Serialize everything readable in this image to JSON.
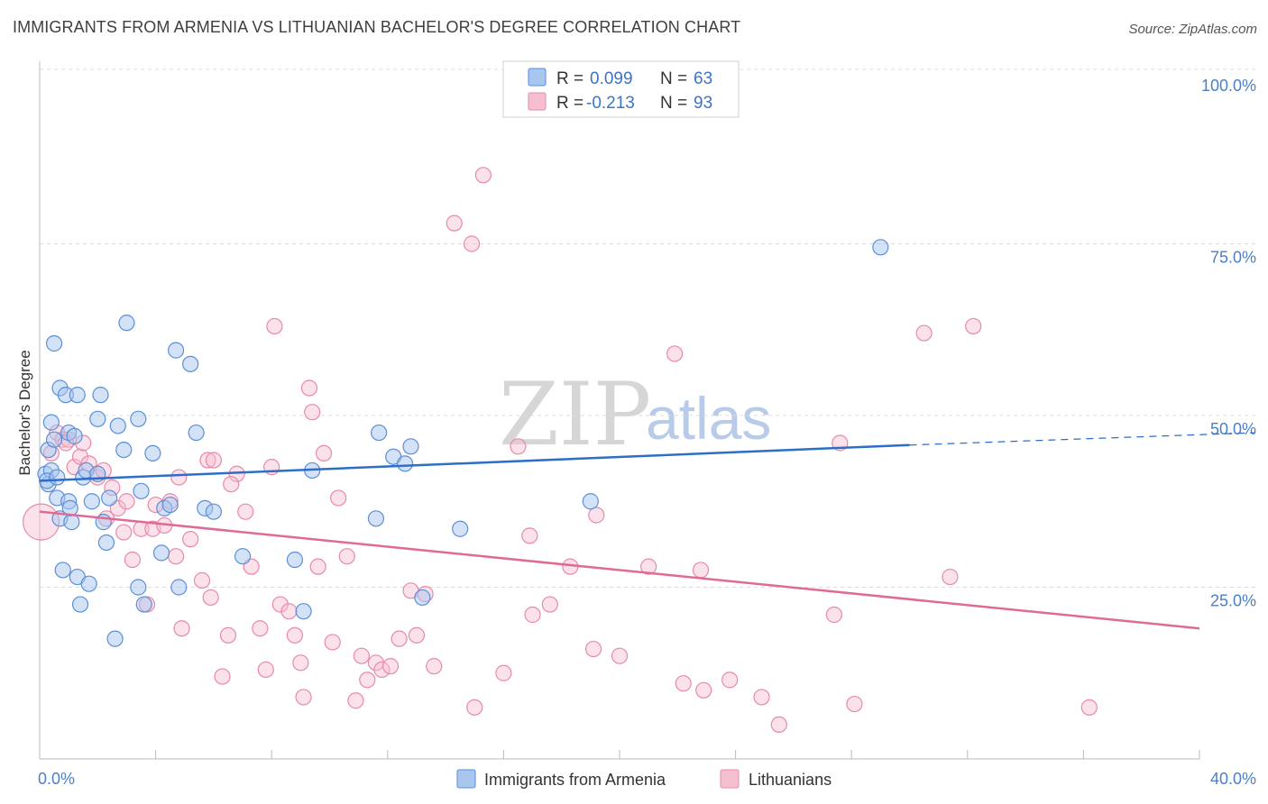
{
  "title": "IMMIGRANTS FROM ARMENIA VS LITHUANIAN BACHELOR'S DEGREE CORRELATION CHART",
  "source": "Source: ZipAtlas.com",
  "watermark": {
    "zip": "ZIP",
    "atlas": "atlas"
  },
  "colors": {
    "blue_fill": "#a9c6ef",
    "blue_stroke": "#5b8fd6",
    "blue_line": "#2d6ec9",
    "pink_fill": "#f6bfd0",
    "pink_stroke": "#e68aa8",
    "pink_line": "#e06a94",
    "grid": "#dddddd",
    "tick_text": "#4a7fc9"
  },
  "legend": {
    "rows": [
      {
        "r_label": "R =",
        "r_value": "0.099",
        "n_label": "N =",
        "n_value": "63"
      },
      {
        "r_label": "R =",
        "r_value": "-0.213",
        "n_label": "N =",
        "n_value": "93"
      }
    ]
  },
  "chart_data": {
    "type": "scatter",
    "title": "IMMIGRANTS FROM ARMENIA VS LITHUANIAN BACHELOR'S DEGREE CORRELATION CHART",
    "xlabel": "",
    "ylabel": "Bachelor's Degree",
    "xlim": [
      0,
      40
    ],
    "ylim": [
      0,
      100
    ],
    "x_tick_labels": [
      "0.0%",
      "40.0%"
    ],
    "y_tick_labels": [
      "100.0%",
      "75.0%",
      "50.0%",
      "25.0%"
    ],
    "y_ticks": [
      100,
      75,
      50,
      25
    ],
    "grid": true,
    "legend_position": "top-center",
    "series": [
      {
        "name": "Immigrants from Armenia",
        "color": "#a9c6ef",
        "trend": {
          "x0": 0,
          "y0": 40.5,
          "x1": 30,
          "y1": 45.7,
          "dashed_to_x": 40,
          "dashed_to_y": 47.5
        },
        "points": [
          [
            0.2,
            41.5
          ],
          [
            0.3,
            40.0
          ],
          [
            0.3,
            45.0
          ],
          [
            0.4,
            49.0
          ],
          [
            0.4,
            42.0
          ],
          [
            0.5,
            46.5
          ],
          [
            0.5,
            60.5
          ],
          [
            0.6,
            38.0
          ],
          [
            0.7,
            54.0
          ],
          [
            0.7,
            35.0
          ],
          [
            0.8,
            27.5
          ],
          [
            0.9,
            53.0
          ],
          [
            1.0,
            37.5
          ],
          [
            1.0,
            47.5
          ],
          [
            1.1,
            34.5
          ],
          [
            1.2,
            47.0
          ],
          [
            1.3,
            53.0
          ],
          [
            1.3,
            26.5
          ],
          [
            1.4,
            22.5
          ],
          [
            1.5,
            41.0
          ],
          [
            1.7,
            25.5
          ],
          [
            1.8,
            37.5
          ],
          [
            2.0,
            49.5
          ],
          [
            2.1,
            53.0
          ],
          [
            2.2,
            34.5
          ],
          [
            2.3,
            31.5
          ],
          [
            2.4,
            38.0
          ],
          [
            2.6,
            17.5
          ],
          [
            2.7,
            48.5
          ],
          [
            2.9,
            45.0
          ],
          [
            3.0,
            63.5
          ],
          [
            3.4,
            49.5
          ],
          [
            3.4,
            25.0
          ],
          [
            3.6,
            22.5
          ],
          [
            3.9,
            44.5
          ],
          [
            4.2,
            30.0
          ],
          [
            4.3,
            36.5
          ],
          [
            4.7,
            59.5
          ],
          [
            4.8,
            25.0
          ],
          [
            5.2,
            57.5
          ],
          [
            5.4,
            47.5
          ],
          [
            5.7,
            36.5
          ],
          [
            7.0,
            29.5
          ],
          [
            8.8,
            29.0
          ],
          [
            9.1,
            21.5
          ],
          [
            9.4,
            42.0
          ],
          [
            11.6,
            35.0
          ],
          [
            11.7,
            47.5
          ],
          [
            12.2,
            44.0
          ],
          [
            12.6,
            43.0
          ],
          [
            12.8,
            45.5
          ],
          [
            13.2,
            23.5
          ],
          [
            14.5,
            33.5
          ],
          [
            19.0,
            37.5
          ],
          [
            29.0,
            74.5
          ],
          [
            0.25,
            40.5
          ],
          [
            0.6,
            41.0
          ],
          [
            1.05,
            36.5
          ],
          [
            1.6,
            42.0
          ],
          [
            2.0,
            41.5
          ],
          [
            3.5,
            39.0
          ],
          [
            4.5,
            37.0
          ],
          [
            6.0,
            36.0
          ]
        ]
      },
      {
        "name": "Lithuanians",
        "color": "#f6bfd0",
        "trend": {
          "x0": 0,
          "y0": 36.0,
          "x1": 40,
          "y1": 19.0
        },
        "points": [
          [
            0.05,
            34.5
          ],
          [
            0.4,
            44.5
          ],
          [
            0.6,
            47.5
          ],
          [
            0.8,
            46.5
          ],
          [
            1.0,
            46.5
          ],
          [
            1.2,
            42.5
          ],
          [
            1.4,
            44.0
          ],
          [
            1.7,
            43.0
          ],
          [
            2.0,
            41.0
          ],
          [
            2.2,
            42.0
          ],
          [
            2.5,
            39.5
          ],
          [
            2.7,
            36.5
          ],
          [
            2.9,
            33.0
          ],
          [
            3.0,
            37.5
          ],
          [
            3.2,
            29.0
          ],
          [
            3.5,
            33.5
          ],
          [
            3.7,
            22.5
          ],
          [
            3.9,
            33.5
          ],
          [
            4.0,
            37.0
          ],
          [
            4.3,
            34.0
          ],
          [
            4.5,
            37.5
          ],
          [
            4.7,
            29.5
          ],
          [
            4.9,
            19.0
          ],
          [
            5.2,
            32.0
          ],
          [
            5.6,
            26.0
          ],
          [
            5.8,
            43.5
          ],
          [
            5.9,
            23.5
          ],
          [
            6.0,
            43.5
          ],
          [
            6.3,
            12.0
          ],
          [
            6.5,
            18.0
          ],
          [
            6.8,
            41.5
          ],
          [
            7.1,
            36.0
          ],
          [
            7.3,
            28.0
          ],
          [
            7.6,
            19.0
          ],
          [
            7.8,
            13.0
          ],
          [
            8.0,
            42.5
          ],
          [
            8.1,
            63.0
          ],
          [
            8.3,
            22.5
          ],
          [
            8.6,
            21.5
          ],
          [
            8.8,
            18.0
          ],
          [
            9.0,
            14.0
          ],
          [
            9.3,
            54.0
          ],
          [
            9.4,
            50.5
          ],
          [
            9.6,
            28.0
          ],
          [
            9.8,
            44.5
          ],
          [
            10.1,
            17.0
          ],
          [
            10.3,
            38.0
          ],
          [
            10.6,
            29.5
          ],
          [
            10.9,
            8.5
          ],
          [
            11.1,
            15.0
          ],
          [
            11.3,
            11.5
          ],
          [
            11.6,
            14.0
          ],
          [
            11.8,
            13.0
          ],
          [
            12.1,
            13.5
          ],
          [
            12.4,
            17.5
          ],
          [
            12.8,
            24.5
          ],
          [
            13.0,
            18.0
          ],
          [
            13.3,
            24.0
          ],
          [
            14.3,
            78.0
          ],
          [
            14.9,
            75.0
          ],
          [
            15.0,
            7.5
          ],
          [
            15.3,
            85.0
          ],
          [
            16.0,
            12.5
          ],
          [
            16.5,
            45.5
          ],
          [
            16.9,
            32.5
          ],
          [
            17.0,
            21.0
          ],
          [
            17.6,
            22.5
          ],
          [
            18.3,
            28.0
          ],
          [
            19.1,
            16.0
          ],
          [
            19.2,
            35.5
          ],
          [
            20.0,
            15.0
          ],
          [
            21.0,
            28.0
          ],
          [
            21.9,
            59.0
          ],
          [
            22.2,
            11.0
          ],
          [
            22.8,
            27.5
          ],
          [
            22.9,
            10.0
          ],
          [
            23.8,
            11.5
          ],
          [
            24.9,
            9.0
          ],
          [
            25.5,
            5.0
          ],
          [
            27.4,
            21.0
          ],
          [
            27.6,
            46.0
          ],
          [
            28.1,
            8.0
          ],
          [
            30.5,
            62.0
          ],
          [
            31.4,
            26.5
          ],
          [
            32.2,
            63.0
          ],
          [
            36.2,
            7.5
          ],
          [
            1.5,
            46.0
          ],
          [
            2.3,
            35.0
          ],
          [
            4.8,
            41.0
          ],
          [
            6.6,
            40.0
          ],
          [
            9.1,
            9.0
          ],
          [
            13.6,
            13.5
          ],
          [
            0.9,
            46.0
          ]
        ]
      }
    ]
  },
  "bottom_legend": {
    "items": [
      "Immigrants from Armenia",
      "Lithuanians"
    ]
  }
}
